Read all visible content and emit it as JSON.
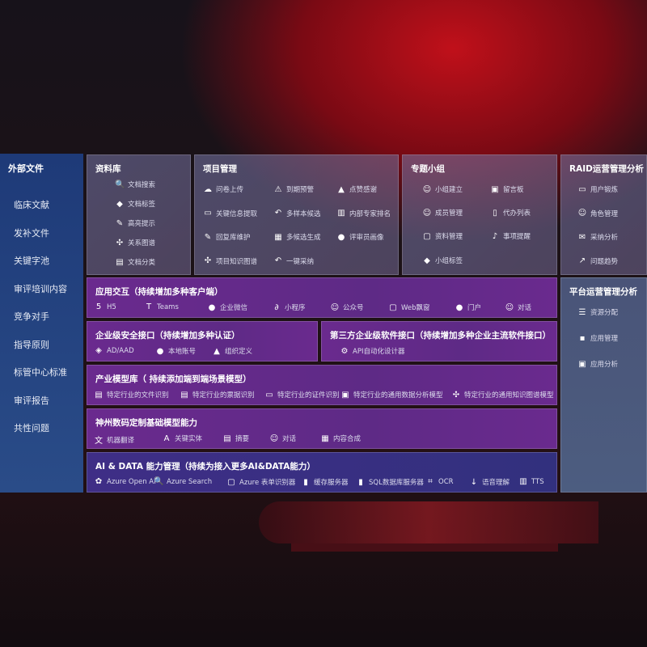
{
  "sidebar": {
    "title": "外部文件",
    "items": [
      "临床文献",
      "发补文件",
      "关键字池",
      "审评培训内容",
      "竞争对手",
      "指导原则",
      "标管中心标准",
      "审评报告",
      "共性问题"
    ]
  },
  "library": {
    "title": "资料库",
    "items": [
      {
        "icon": "doc-search-icon",
        "label": "文档搜索"
      },
      {
        "icon": "tag-icon",
        "label": "文档标签"
      },
      {
        "icon": "pen-icon",
        "label": "高亮提示"
      },
      {
        "icon": "graph-icon",
        "label": "关系图谱"
      },
      {
        "icon": "classify-icon",
        "label": "文档分类"
      }
    ]
  },
  "project": {
    "title": "项目管理",
    "items": [
      {
        "icon": "cloud-upload-icon",
        "label": "问卷上传"
      },
      {
        "icon": "alarm-icon",
        "label": "到期预警"
      },
      {
        "icon": "thumbs-up-icon",
        "label": "点赞感谢"
      },
      {
        "icon": "extract-icon",
        "label": "关键信息提取"
      },
      {
        "icon": "reply-icon",
        "label": "多样本候选"
      },
      {
        "icon": "ranking-icon",
        "label": "内部专家排名"
      },
      {
        "icon": "edit-icon",
        "label": "回复库维护"
      },
      {
        "icon": "puzzle-icon",
        "label": "多候选生成"
      },
      {
        "icon": "user-icon",
        "label": "评审员画像"
      },
      {
        "icon": "graph-icon",
        "label": "项目知识图谱"
      },
      {
        "icon": "reply-icon",
        "label": "一键采纳"
      }
    ]
  },
  "group": {
    "title": "专题小组",
    "items": [
      {
        "icon": "group-icon",
        "label": "小组建立"
      },
      {
        "icon": "bbs-icon",
        "label": "留言板"
      },
      {
        "icon": "member-icon",
        "label": "成员管理"
      },
      {
        "icon": "clipboard-icon",
        "label": "代办列表"
      },
      {
        "icon": "folder-icon",
        "label": "资料管理"
      },
      {
        "icon": "bell-icon",
        "label": "事项提醒"
      },
      {
        "icon": "tag-icon",
        "label": "小组标签"
      }
    ]
  },
  "raid": {
    "title": "RAID运营管理分析",
    "items": [
      {
        "icon": "id-card-icon",
        "label": "用户锻炼"
      },
      {
        "icon": "group-icon",
        "label": "角色管理"
      },
      {
        "icon": "qa-icon",
        "label": "采纳分析"
      },
      {
        "icon": "trend-icon",
        "label": "问题趋势"
      }
    ]
  },
  "platform": {
    "title": "平台运营管理分析",
    "items": [
      {
        "icon": "checklist-icon",
        "label": "资源分配"
      },
      {
        "icon": "apps-icon",
        "label": "应用管理"
      },
      {
        "icon": "chart-icon",
        "label": "应用分析"
      }
    ]
  },
  "app": {
    "title": "应用交互（持续增加多种客户端）",
    "items": [
      {
        "icon": "html5-icon",
        "label": "H5"
      },
      {
        "icon": "teams-icon",
        "label": "Teams"
      },
      {
        "icon": "wechat-work-icon",
        "label": "企业微信"
      },
      {
        "icon": "miniprogram-icon",
        "label": "小程序"
      },
      {
        "icon": "official-account-icon",
        "label": "公众号"
      },
      {
        "icon": "window-icon",
        "label": "Web飘窗"
      },
      {
        "icon": "portal-icon",
        "label": "门户"
      },
      {
        "icon": "chat-icon",
        "label": "对话"
      }
    ]
  },
  "security": {
    "title": "企业级安全接口（持续增加多种认证）",
    "items": [
      {
        "icon": "ad-icon",
        "label": "AD/AAD"
      },
      {
        "icon": "local-account-icon",
        "label": "本地账号"
      },
      {
        "icon": "org-icon",
        "label": "组织定义"
      }
    ]
  },
  "thirdparty": {
    "title": "第三方企业级软件接口（持续增加多种企业主流软件接口）",
    "items": [
      {
        "icon": "api-gear-icon",
        "label": "API自动化设计器"
      }
    ]
  },
  "industry": {
    "title": "产业模型库（ 持续添加端到端场景模型）",
    "items": [
      {
        "icon": "file-icon",
        "label": "特定行业的文件识别"
      },
      {
        "icon": "receipt-icon",
        "label": "特定行业的票据识别"
      },
      {
        "icon": "id-card-icon",
        "label": "特定行业的证件识别"
      },
      {
        "icon": "data-chart-icon",
        "label": "特定行业的通用数据分析模型"
      },
      {
        "icon": "graph-icon",
        "label": "特定行业的通用知识图谱模型"
      }
    ]
  },
  "base": {
    "title": "神州数码定制基础模型能力",
    "items": [
      {
        "icon": "translate-icon",
        "label": "机器翻译"
      },
      {
        "icon": "entity-icon",
        "label": "关键实体"
      },
      {
        "icon": "summary-icon",
        "label": "摘要"
      },
      {
        "icon": "chat-icon",
        "label": "对话"
      },
      {
        "icon": "puzzle-icon",
        "label": "内容合成"
      }
    ]
  },
  "ai": {
    "title": "AI & DATA 能力管理（持续为接入更多AI&DATA能力）",
    "items": [
      {
        "icon": "openai-icon",
        "label": "Azure Open AI"
      },
      {
        "icon": "search-icon",
        "label": "Azure Search"
      },
      {
        "icon": "form-icon",
        "label": "Azure 表单识别器"
      },
      {
        "icon": "cache-icon",
        "label": "缓存服务器"
      },
      {
        "icon": "sql-icon",
        "label": "SQL数据库服务器"
      },
      {
        "icon": "ocr-icon",
        "label": "OCR"
      },
      {
        "icon": "speech-icon",
        "label": "语音理解"
      },
      {
        "icon": "tts-icon",
        "label": "TTS"
      }
    ]
  }
}
